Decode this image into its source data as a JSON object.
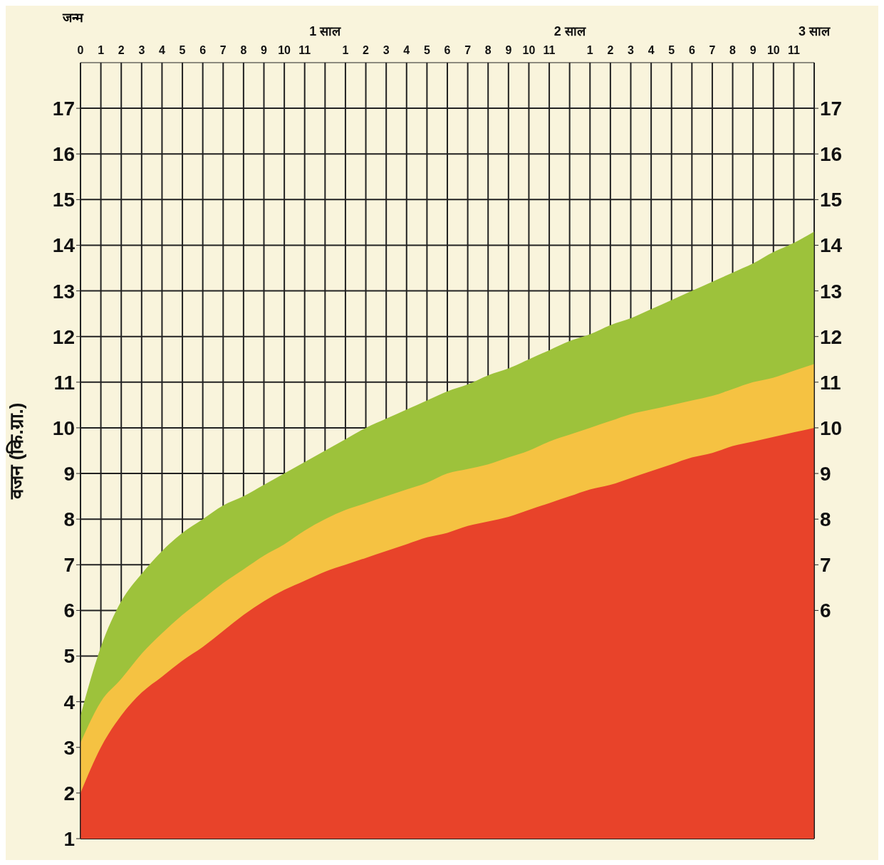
{
  "chart_data": {
    "type": "area",
    "ylabel": "वजन (कि.ग्रा.)",
    "annotations": [
      "जन्म"
    ],
    "categories": [
      "0",
      "1",
      "2",
      "3",
      "4",
      "5",
      "6",
      "7",
      "8",
      "9",
      "10",
      "11",
      "1 साल",
      "1",
      "2",
      "3",
      "4",
      "5",
      "6",
      "7",
      "8",
      "9",
      "10",
      "11",
      "2 साल",
      "1",
      "2",
      "3",
      "4",
      "5",
      "6",
      "7",
      "8",
      "9",
      "10",
      "11",
      "3 साल"
    ],
    "series": [
      {
        "color": "#9dc23b",
        "values": [
          3.7,
          5.2,
          6.2,
          6.8,
          7.3,
          7.7,
          8.0,
          8.3,
          8.5,
          8.75,
          9.0,
          9.25,
          9.5,
          9.75,
          10.0,
          10.2,
          10.4,
          10.6,
          10.8,
          10.95,
          11.15,
          11.3,
          11.5,
          11.7,
          11.9,
          12.05,
          12.25,
          12.4,
          12.6,
          12.8,
          13.0,
          13.2,
          13.4,
          13.6,
          13.85,
          14.05,
          14.3
        ]
      },
      {
        "color": "#f5c242",
        "values": [
          3.1,
          4.0,
          4.5,
          5.05,
          5.5,
          5.9,
          6.25,
          6.6,
          6.9,
          7.2,
          7.45,
          7.75,
          8.0,
          8.2,
          8.35,
          8.5,
          8.65,
          8.8,
          9.0,
          9.1,
          9.2,
          9.35,
          9.5,
          9.7,
          9.85,
          10.0,
          10.15,
          10.3,
          10.4,
          10.5,
          10.6,
          10.7,
          10.85,
          11.0,
          11.1,
          11.25,
          11.4
        ]
      },
      {
        "color": "#e8432a",
        "values": [
          2.0,
          3.0,
          3.7,
          4.2,
          4.55,
          4.9,
          5.2,
          5.55,
          5.9,
          6.2,
          6.45,
          6.65,
          6.85,
          7.0,
          7.15,
          7.3,
          7.45,
          7.6,
          7.7,
          7.85,
          7.95,
          8.05,
          8.2,
          8.35,
          8.5,
          8.65,
          8.75,
          8.9,
          9.05,
          9.2,
          9.35,
          9.45,
          9.6,
          9.7,
          9.8,
          9.9,
          10.0
        ]
      }
    ],
    "ylim": [
      1,
      18
    ],
    "yticks": [
      1,
      2,
      3,
      4,
      5,
      6,
      7,
      8,
      9,
      10,
      11,
      12,
      13,
      14,
      15,
      16,
      17
    ],
    "y2lim": [
      1,
      18
    ],
    "y2ticks": [
      6,
      7,
      8,
      9,
      10,
      11,
      12,
      13,
      14,
      15,
      16,
      17
    ],
    "grid": true
  }
}
